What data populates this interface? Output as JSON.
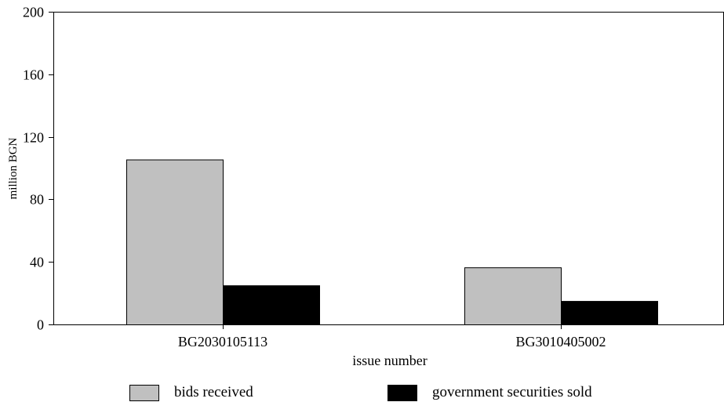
{
  "chart_data": {
    "type": "bar",
    "title": "",
    "xlabel": "issue number",
    "ylabel": "million BGN",
    "ylim": [
      0,
      200
    ],
    "yticks": [
      0,
      40,
      80,
      120,
      160,
      200
    ],
    "categories": [
      "BG2030105113",
      "BG3010405002"
    ],
    "series": [
      {
        "name": "bids received",
        "color": "#c0c0c0",
        "values": [
          105.5,
          36.5
        ]
      },
      {
        "name": "government securities sold",
        "color": "#000000",
        "values": [
          25,
          15
        ]
      }
    ],
    "grid": false,
    "legend_position": "bottom"
  }
}
